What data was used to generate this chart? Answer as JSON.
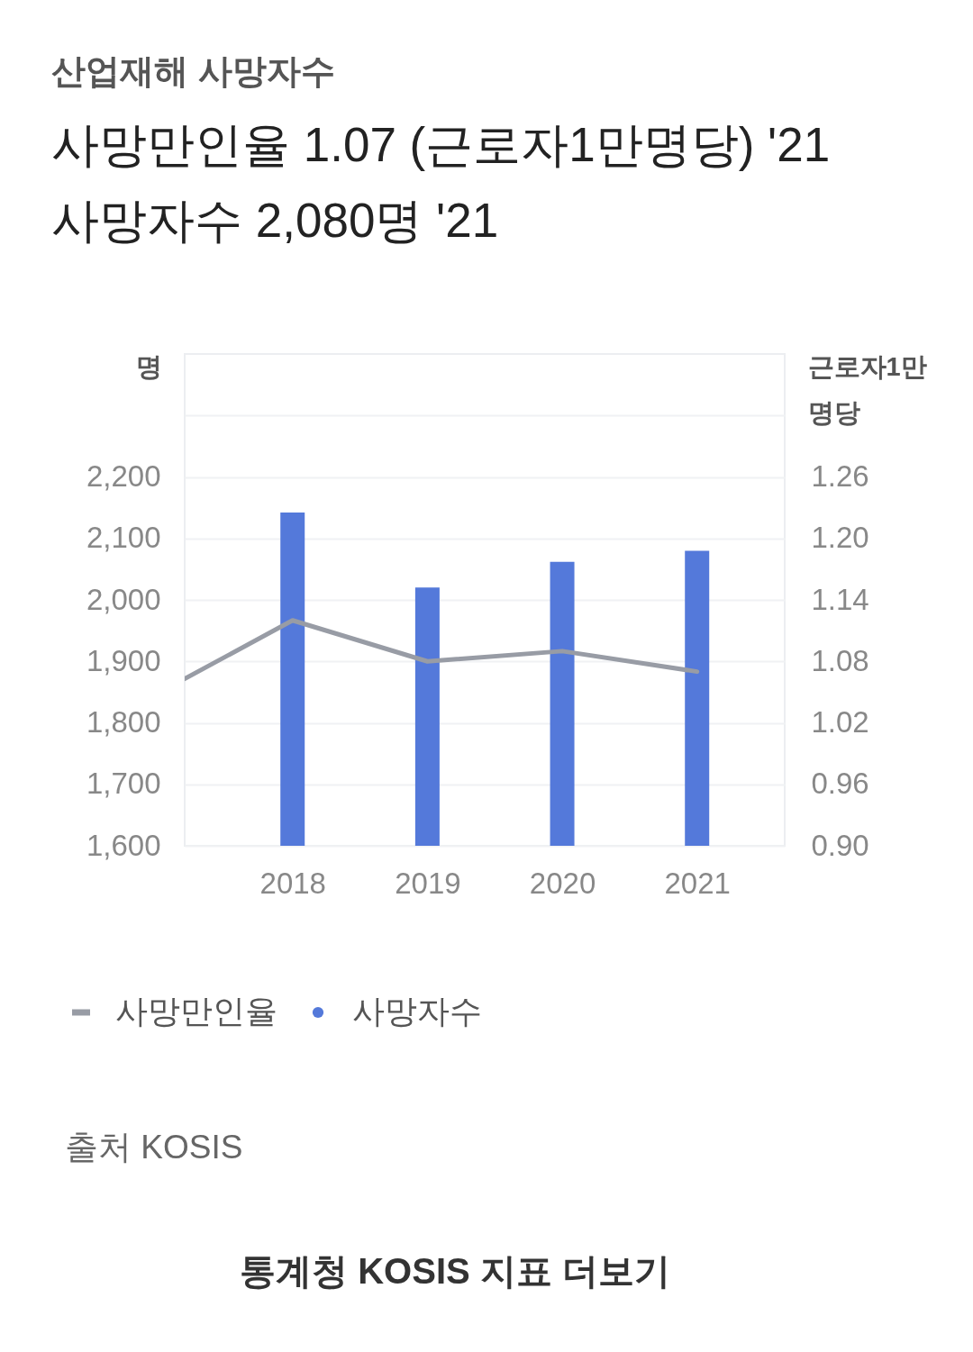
{
  "chart_data": {
    "type": "bar",
    "title": "산업재해 사망자수",
    "ylabel": "명",
    "y2label": "근로자1만명당",
    "x": [
      2018,
      2019,
      2020,
      2021
    ],
    "xlim": [
      2017.2,
      2021.65
    ],
    "xticks": [
      2018,
      2019,
      2020,
      2021
    ],
    "ylim": [
      1600,
      2400
    ],
    "yticks": [
      {
        "value": 1600,
        "label": "1,600"
      },
      {
        "value": 1700,
        "label": "1,700"
      },
      {
        "value": 1800,
        "label": "1,800"
      },
      {
        "value": 1900,
        "label": "1,900"
      },
      {
        "value": 2000,
        "label": "2,000"
      },
      {
        "value": 2100,
        "label": "2,100"
      },
      {
        "value": 2200,
        "label": "2,200"
      },
      {
        "value": 2300,
        "label": null
      }
    ],
    "y2lim": [
      0.9,
      1.38
    ],
    "y2ticks": [
      {
        "value": 0.9,
        "label": "0.90"
      },
      0.96,
      1.02,
      1.08,
      1.14,
      {
        "value": 1.2,
        "label": "1.20"
      },
      1.26
    ],
    "series": [
      {
        "name": "사망만인율",
        "type": "line",
        "axis": "y2",
        "color": "#989ca5",
        "x": [
          2017.2,
          2018,
          2019,
          2020,
          2021
        ],
        "values": [
          1.063,
          1.12,
          1.08,
          1.09,
          1.07
        ]
      },
      {
        "name": "사망자수",
        "color": "#5479da",
        "values": [
          2142,
          2020,
          2062,
          2080
        ]
      }
    ],
    "grid": "y",
    "legend": "bottom",
    "annotations": [
      "사망만인율 1.07 (근로자1만명당) '21",
      "사망자수 2,080명 '21",
      "출처 KOSIS",
      "통계청 KOSIS 지표 더보기"
    ]
  }
}
